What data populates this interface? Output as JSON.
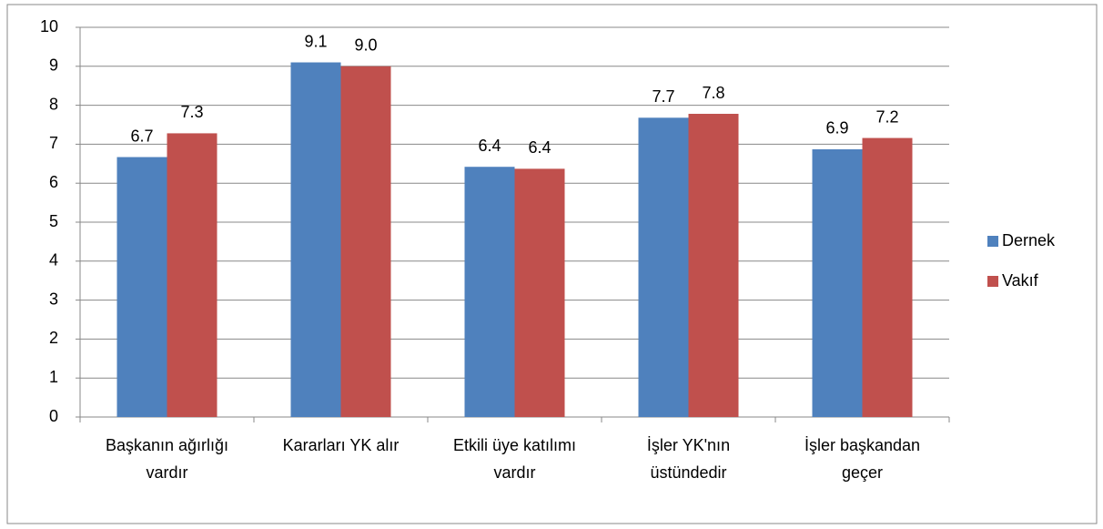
{
  "chart_data": {
    "type": "bar",
    "categories": [
      "Başkanın ağırlığı\nvardır",
      "Kararları YK alır",
      "Etkili üye katılımı\nvardır",
      "İşler YK'nın\nüstündedir",
      "İşler başkandan\ngeçer"
    ],
    "series": [
      {
        "name": "Dernek",
        "color": "#4f81bd",
        "values": [
          6.67,
          9.1,
          6.42,
          7.68,
          6.87
        ],
        "value_labels": [
          "6.7",
          "9.1",
          "6.4",
          "7.7",
          "6.9"
        ]
      },
      {
        "name": "Vakıf",
        "color": "#c0504d",
        "values": [
          7.28,
          9.0,
          6.37,
          7.78,
          7.16
        ],
        "value_labels": [
          "7.3",
          "9.0",
          "6.4",
          "7.8",
          "7.2"
        ]
      }
    ],
    "ylim": [
      0,
      10
    ],
    "yticks": [
      0,
      1,
      2,
      3,
      4,
      5,
      6,
      7,
      8,
      9,
      10
    ],
    "grid": true,
    "legend": "right"
  }
}
